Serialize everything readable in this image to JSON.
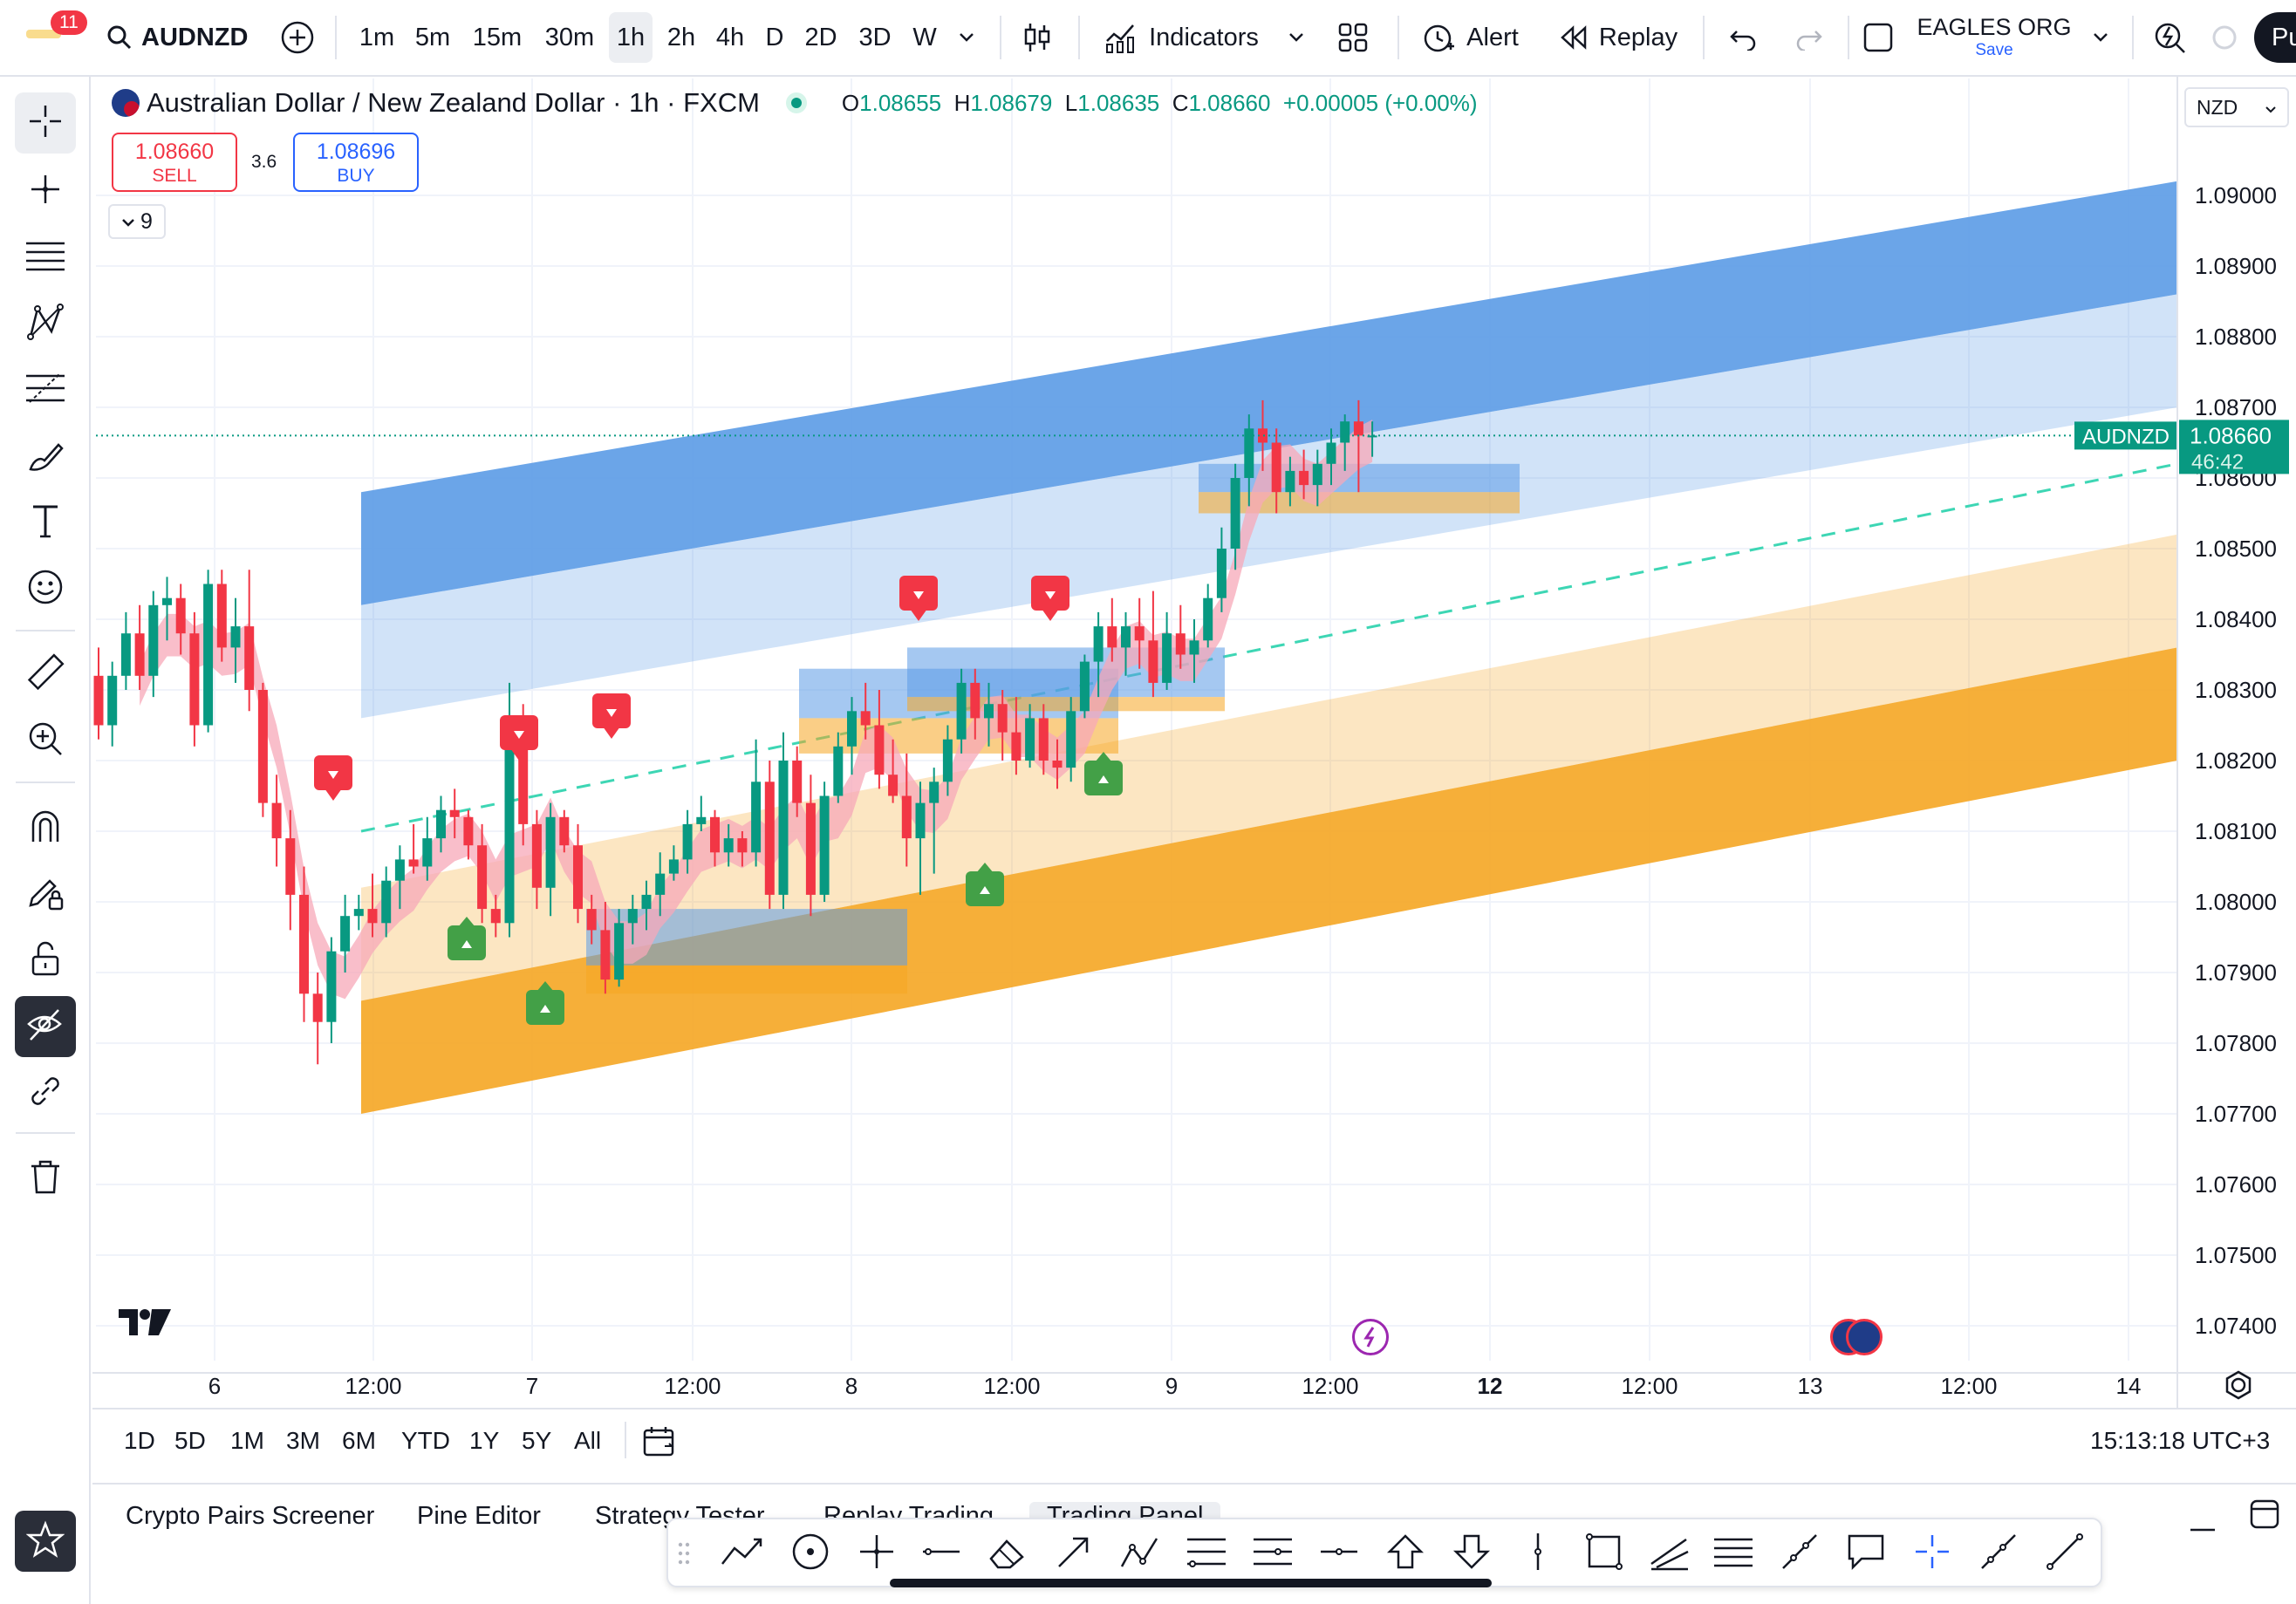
{
  "topbar": {
    "notification_count": "11",
    "symbol": "AUDNZD",
    "intervals": [
      "1m",
      "5m",
      "15m",
      "30m",
      "1h",
      "2h",
      "4h",
      "D",
      "2D",
      "3D",
      "W"
    ],
    "selected_interval": "1h",
    "indicators_label": "Indicators",
    "alert_label": "Alert",
    "replay_label": "Replay",
    "layout_name": "EAGLES ORG",
    "save_label": "Save",
    "publish_label": "Pu"
  },
  "legend": {
    "title": "Australian Dollar / New Zealand Dollar · 1h · FXCM",
    "o_label": "O",
    "o": "1.08655",
    "h_label": "H",
    "h": "1.08679",
    "l_label": "L",
    "l": "1.08635",
    "c_label": "C",
    "c": "1.08660",
    "change": "+0.00005 (+0.00%)",
    "sell_price": "1.08660",
    "sell_label": "SELL",
    "spread": "3.6",
    "buy_price": "1.08696",
    "buy_label": "BUY",
    "indicators_count": "9",
    "currency": "NZD"
  },
  "price_axis": {
    "labels": [
      "1.09000",
      "1.08900",
      "1.08800",
      "1.08700",
      "1.08600",
      "1.08500",
      "1.08400",
      "1.08300",
      "1.08200",
      "1.08100",
      "1.08000",
      "1.07900",
      "1.07800",
      "1.07700",
      "1.07600",
      "1.07500",
      "1.07400"
    ],
    "symbol_tag": "AUDNZD",
    "last_price": "1.08660",
    "countdown": "46:42"
  },
  "time_axis": {
    "labels": [
      "6",
      "12:00",
      "7",
      "12:00",
      "8",
      "12:00",
      "9",
      "12:00",
      "12",
      "12:00",
      "13",
      "12:00",
      "14"
    ]
  },
  "bottom": {
    "ranges": [
      "1D",
      "5D",
      "1M",
      "3M",
      "6M",
      "YTD",
      "1Y",
      "5Y",
      "All"
    ],
    "clock": "15:13:18 UTC+3"
  },
  "panel_tabs": [
    "Crypto Pairs Screener",
    "Pine Editor",
    "Strategy Tester",
    "Replay Trading",
    "Trading Panel"
  ],
  "colors": {
    "up": "#089981",
    "down": "#f23645",
    "blue_band": "#5b9be6",
    "orange_band": "#f5a623",
    "accent": "#2962ff"
  },
  "chart_data": {
    "type": "candlestick",
    "symbol": "AUDNZD",
    "timeframe": "1h",
    "ylim": [
      1.0735,
      1.0915
    ],
    "last_price": 1.0866,
    "ohlc_last": {
      "open": 1.08655,
      "high": 1.08679,
      "low": 1.08635,
      "close": 1.0866
    },
    "candles": [
      [
        1.0832,
        1.0836,
        1.0823,
        1.0825
      ],
      [
        1.0825,
        1.0834,
        1.0822,
        1.0832
      ],
      [
        1.0832,
        1.0841,
        1.083,
        1.0838
      ],
      [
        1.0838,
        1.0842,
        1.083,
        1.0832
      ],
      [
        1.0832,
        1.0844,
        1.0829,
        1.0842
      ],
      [
        1.0842,
        1.0846,
        1.0837,
        1.0843
      ],
      [
        1.0843,
        1.0845,
        1.0835,
        1.0838
      ],
      [
        1.0838,
        1.0841,
        1.0822,
        1.0825
      ],
      [
        1.0825,
        1.0847,
        1.0824,
        1.0845
      ],
      [
        1.0845,
        1.0847,
        1.0834,
        1.0836
      ],
      [
        1.0836,
        1.0843,
        1.0831,
        1.0839
      ],
      [
        1.0839,
        1.0847,
        1.0827,
        1.083
      ],
      [
        1.083,
        1.0831,
        1.0812,
        1.0814
      ],
      [
        1.0814,
        1.0818,
        1.0805,
        1.0809
      ],
      [
        1.0809,
        1.0813,
        1.0796,
        1.0801
      ],
      [
        1.0801,
        1.0805,
        1.0783,
        1.0787
      ],
      [
        1.0787,
        1.079,
        1.0777,
        1.0783
      ],
      [
        1.0783,
        1.0795,
        1.078,
        1.0793
      ],
      [
        1.0793,
        1.0801,
        1.079,
        1.0798
      ],
      [
        1.0798,
        1.0801,
        1.0796,
        1.0799
      ],
      [
        1.0799,
        1.0804,
        1.0795,
        1.0797
      ],
      [
        1.0797,
        1.0805,
        1.0795,
        1.0803
      ],
      [
        1.0803,
        1.0808,
        1.0799,
        1.0806
      ],
      [
        1.0806,
        1.0811,
        1.0804,
        1.0805
      ],
      [
        1.0805,
        1.0812,
        1.0803,
        1.0809
      ],
      [
        1.0809,
        1.0815,
        1.0807,
        1.0813
      ],
      [
        1.0813,
        1.0816,
        1.0809,
        1.0812
      ],
      [
        1.0812,
        1.0813,
        1.0806,
        1.0808
      ],
      [
        1.0808,
        1.0811,
        1.0797,
        1.0799
      ],
      [
        1.0799,
        1.0801,
        1.0795,
        1.0797
      ],
      [
        1.0797,
        1.0831,
        1.0795,
        1.0826
      ],
      [
        1.0826,
        1.0828,
        1.0808,
        1.0811
      ],
      [
        1.0811,
        1.0813,
        1.0799,
        1.0802
      ],
      [
        1.0802,
        1.0814,
        1.0798,
        1.0812
      ],
      [
        1.0812,
        1.0813,
        1.0807,
        1.0808
      ],
      [
        1.0808,
        1.0811,
        1.0797,
        1.0799
      ],
      [
        1.0799,
        1.0801,
        1.0794,
        1.0796
      ],
      [
        1.0796,
        1.08,
        1.0787,
        1.0789
      ],
      [
        1.0789,
        1.0799,
        1.0788,
        1.0797
      ],
      [
        1.0797,
        1.0801,
        1.0794,
        1.0799
      ],
      [
        1.0799,
        1.0803,
        1.0796,
        1.0801
      ],
      [
        1.0801,
        1.0807,
        1.0798,
        1.0804
      ],
      [
        1.0804,
        1.0808,
        1.0803,
        1.0806
      ],
      [
        1.0806,
        1.0813,
        1.0804,
        1.0811
      ],
      [
        1.0811,
        1.0815,
        1.081,
        1.0812
      ],
      [
        1.0812,
        1.0813,
        1.0805,
        1.0807
      ],
      [
        1.0807,
        1.0811,
        1.0805,
        1.0809
      ],
      [
        1.0809,
        1.081,
        1.0805,
        1.0807
      ],
      [
        1.0807,
        1.0823,
        1.0805,
        1.0817
      ],
      [
        1.0817,
        1.082,
        1.0799,
        1.0801
      ],
      [
        1.0801,
        1.0824,
        1.0799,
        1.082
      ],
      [
        1.082,
        1.0822,
        1.0812,
        1.0814
      ],
      [
        1.0814,
        1.0818,
        1.0798,
        1.0801
      ],
      [
        1.0801,
        1.0817,
        1.08,
        1.0815
      ],
      [
        1.0815,
        1.0824,
        1.0814,
        1.0822
      ],
      [
        1.0822,
        1.0829,
        1.0818,
        1.0827
      ],
      [
        1.0827,
        1.0831,
        1.0823,
        1.0825
      ],
      [
        1.0825,
        1.083,
        1.0816,
        1.0818
      ],
      [
        1.0818,
        1.0823,
        1.0814,
        1.0815
      ],
      [
        1.0815,
        1.0821,
        1.0805,
        1.0809
      ],
      [
        1.0809,
        1.0817,
        1.0801,
        1.0814
      ],
      [
        1.0814,
        1.0819,
        1.0804,
        1.0817
      ],
      [
        1.0817,
        1.0825,
        1.0815,
        1.0823
      ],
      [
        1.0823,
        1.0833,
        1.0821,
        1.0831
      ],
      [
        1.0831,
        1.0833,
        1.0823,
        1.0826
      ],
      [
        1.0826,
        1.0831,
        1.0822,
        1.0828
      ],
      [
        1.0828,
        1.083,
        1.082,
        1.0824
      ],
      [
        1.0824,
        1.0829,
        1.0818,
        1.082
      ],
      [
        1.082,
        1.0828,
        1.0819,
        1.0826
      ],
      [
        1.0826,
        1.0828,
        1.0818,
        1.082
      ],
      [
        1.082,
        1.0823,
        1.0816,
        1.0819
      ],
      [
        1.0819,
        1.0829,
        1.0817,
        1.0827
      ],
      [
        1.0827,
        1.0835,
        1.0826,
        1.0834
      ],
      [
        1.0834,
        1.0841,
        1.0829,
        1.0839
      ],
      [
        1.0839,
        1.0843,
        1.0834,
        1.0836
      ],
      [
        1.0836,
        1.0841,
        1.0832,
        1.0839
      ],
      [
        1.0839,
        1.0843,
        1.0833,
        1.0837
      ],
      [
        1.0837,
        1.0844,
        1.0829,
        1.0831
      ],
      [
        1.0831,
        1.0841,
        1.083,
        1.0838
      ],
      [
        1.0838,
        1.0842,
        1.0833,
        1.0835
      ],
      [
        1.0835,
        1.084,
        1.0831,
        1.0837
      ],
      [
        1.0837,
        1.0845,
        1.0836,
        1.0843
      ],
      [
        1.0843,
        1.0853,
        1.0841,
        1.085
      ],
      [
        1.085,
        1.0862,
        1.0847,
        1.086
      ],
      [
        1.086,
        1.0869,
        1.0856,
        1.0867
      ],
      [
        1.0867,
        1.0871,
        1.0861,
        1.0865
      ],
      [
        1.0865,
        1.0867,
        1.0855,
        1.0858
      ],
      [
        1.0858,
        1.0863,
        1.0856,
        1.0861
      ],
      [
        1.0861,
        1.0864,
        1.0857,
        1.0859
      ],
      [
        1.0859,
        1.0864,
        1.0856,
        1.0862
      ],
      [
        1.0862,
        1.0867,
        1.0859,
        1.0865
      ],
      [
        1.0865,
        1.0869,
        1.0861,
        1.0868
      ],
      [
        1.0868,
        1.0871,
        1.0858,
        1.0866
      ],
      [
        1.0866,
        1.0868,
        1.0863,
        1.0866
      ]
    ],
    "zones": [
      {
        "kind": "supply-band",
        "color": "blue",
        "from": {
          "date": "6 12:00",
          "upper": 1.0858,
          "lower": 1.0842
        },
        "to": {
          "date": "14",
          "upper": 1.0902,
          "lower": 1.0886
        }
      },
      {
        "kind": "demand-band",
        "color": "orange",
        "from": {
          "date": "6 12:00",
          "upper": 1.0786,
          "lower": 1.077
        },
        "to": {
          "date": "14",
          "upper": 1.0836,
          "lower": 1.082
        }
      }
    ],
    "trendline": {
      "style": "dashed",
      "from": {
        "date": "6 12:00",
        "price": 1.081
      },
      "to": {
        "date": "14",
        "price": 1.0862
      }
    },
    "signals": [
      {
        "type": "sell",
        "time_label": "6"
      },
      {
        "type": "sell",
        "time_label": "7"
      },
      {
        "type": "sell",
        "time_label": "7"
      },
      {
        "type": "sell",
        "time_label": "8"
      },
      {
        "type": "sell",
        "time_label": "8"
      },
      {
        "type": "buy",
        "time_label": "12:00"
      },
      {
        "type": "buy",
        "time_label": "7"
      },
      {
        "type": "buy",
        "time_label": "12:00"
      },
      {
        "type": "buy",
        "time_label": "9"
      }
    ]
  }
}
